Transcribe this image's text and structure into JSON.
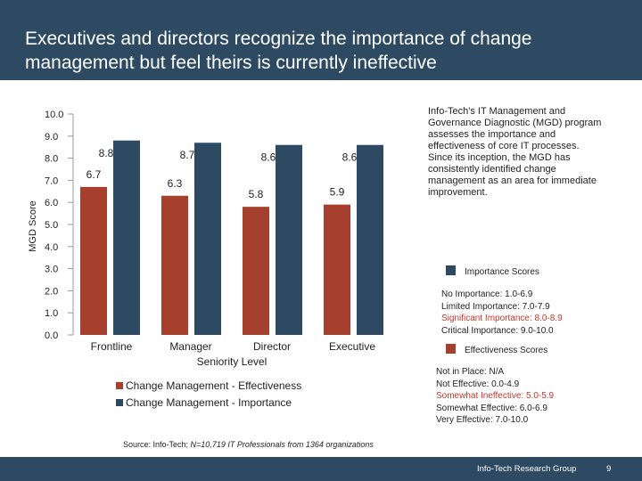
{
  "header": {
    "title": "Executives and directors recognize the importance of change management but feel theirs is currently ineffective"
  },
  "chart_data": {
    "type": "bar",
    "categories": [
      "Frontline",
      "Manager",
      "Director",
      "Executive"
    ],
    "series": [
      {
        "name": "Change Management - Effectiveness",
        "color": "#a53f2e",
        "values": [
          6.7,
          6.3,
          5.8,
          5.9
        ]
      },
      {
        "name": "Change Management - Importance",
        "color": "#2d4a62",
        "values": [
          8.8,
          8.7,
          8.6,
          8.6
        ]
      }
    ],
    "value_labels": {
      "effectiveness": [
        "6.7",
        "6.3",
        "5.8",
        "5.9"
      ],
      "importance": [
        "8.8",
        "8.7",
        "8.6",
        "8.6"
      ]
    },
    "ylim": [
      0,
      10
    ],
    "yticks": [
      "0.0",
      "1.0",
      "2.0",
      "3.0",
      "4.0",
      "5.0",
      "6.0",
      "7.0",
      "8.0",
      "9.0",
      "10.0"
    ],
    "ylabel": "MGD Score",
    "xlabel": "Seniority Level",
    "legend": [
      "Change Management - Effectiveness",
      "Change Management - Importance"
    ],
    "grid": false
  },
  "side_text": "Info-Tech's IT Management and Governance Diagnostic (MGD) program assesses the importance and effectiveness of core IT processes. Since its inception, the MGD has consistently identified change management as an area for immediate improvement.",
  "importance_scores": {
    "title": "Importance Scores",
    "color": "#2d4a62",
    "items": [
      "No Importance: 1.0-6.9",
      "Limited Importance: 7.0-7.9",
      "Significant Importance: 8.0-8.9",
      "Critical Importance: 9.0-10.0"
    ],
    "highlight_color": "#c0392b"
  },
  "effectiveness_scores": {
    "title": "Effectiveness Scores",
    "color": "#a53f2e",
    "items": [
      "Not in Place: N/A",
      "Not Effective: 0.0-4.9",
      "Somewhat Ineffective: 5.0-5.9",
      "Somewhat Effective: 6.0-6.9",
      "Very Effective: 7.0-10.0"
    ]
  },
  "source": {
    "prefix": "Source: Info-Tech; ",
    "italic": "N=10,719 IT Professionals from  1364 organizations"
  },
  "footer": {
    "org": "Info-Tech Research Group",
    "page": "9"
  }
}
